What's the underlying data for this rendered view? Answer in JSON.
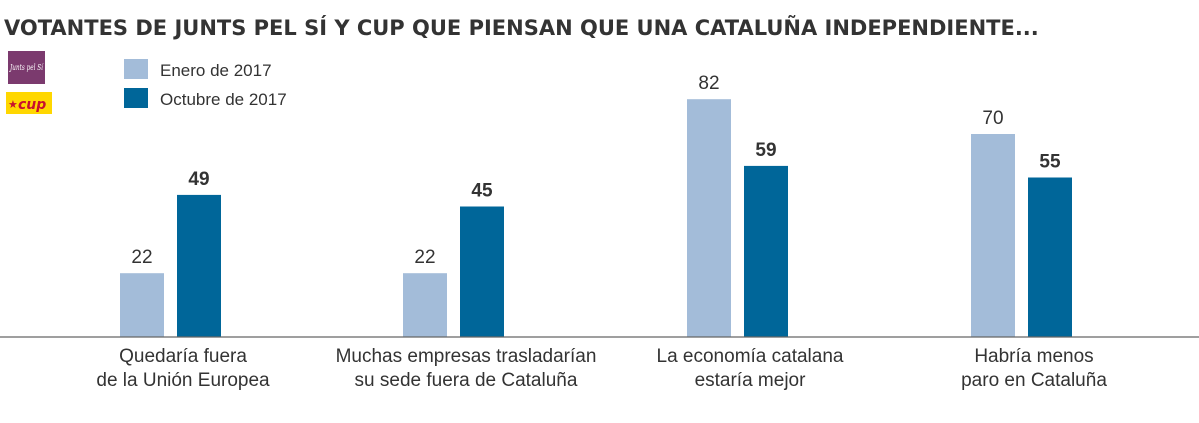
{
  "title": "VOTANTES DE JUNTS PEL SÍ Y CUP QUE PIENSAN QUE UNA CATALUÑA INDEPENDIENTE...",
  "logos": {
    "junts": "Junts pel Sí",
    "cup": "cup"
  },
  "colors": {
    "enero": "#a3bcd9",
    "octubre": "#006699",
    "baseline": "#666666",
    "junts_logo": "#7b3a6e",
    "cup_logo": "#ffd700"
  },
  "chart_data": {
    "type": "bar",
    "title": "VOTANTES DE JUNTS PEL SÍ Y CUP QUE PIENSAN QUE UNA CATALUÑA INDEPENDIENTE...",
    "categories": [
      [
        "Quedaría fuera",
        "de la Unión Europea"
      ],
      [
        "Muchas empresas trasladarían",
        "su sede fuera de Cataluña"
      ],
      [
        "La economía catalana",
        "estaría mejor"
      ],
      [
        "Habría menos",
        "paro en Cataluña"
      ]
    ],
    "series": [
      {
        "name": "Enero de 2017",
        "values": [
          22,
          22,
          82,
          70
        ]
      },
      {
        "name": "Octubre de 2017",
        "values": [
          49,
          45,
          59,
          55
        ]
      }
    ],
    "ylim": [
      0,
      100
    ],
    "legend": "top-left",
    "grid": false
  }
}
